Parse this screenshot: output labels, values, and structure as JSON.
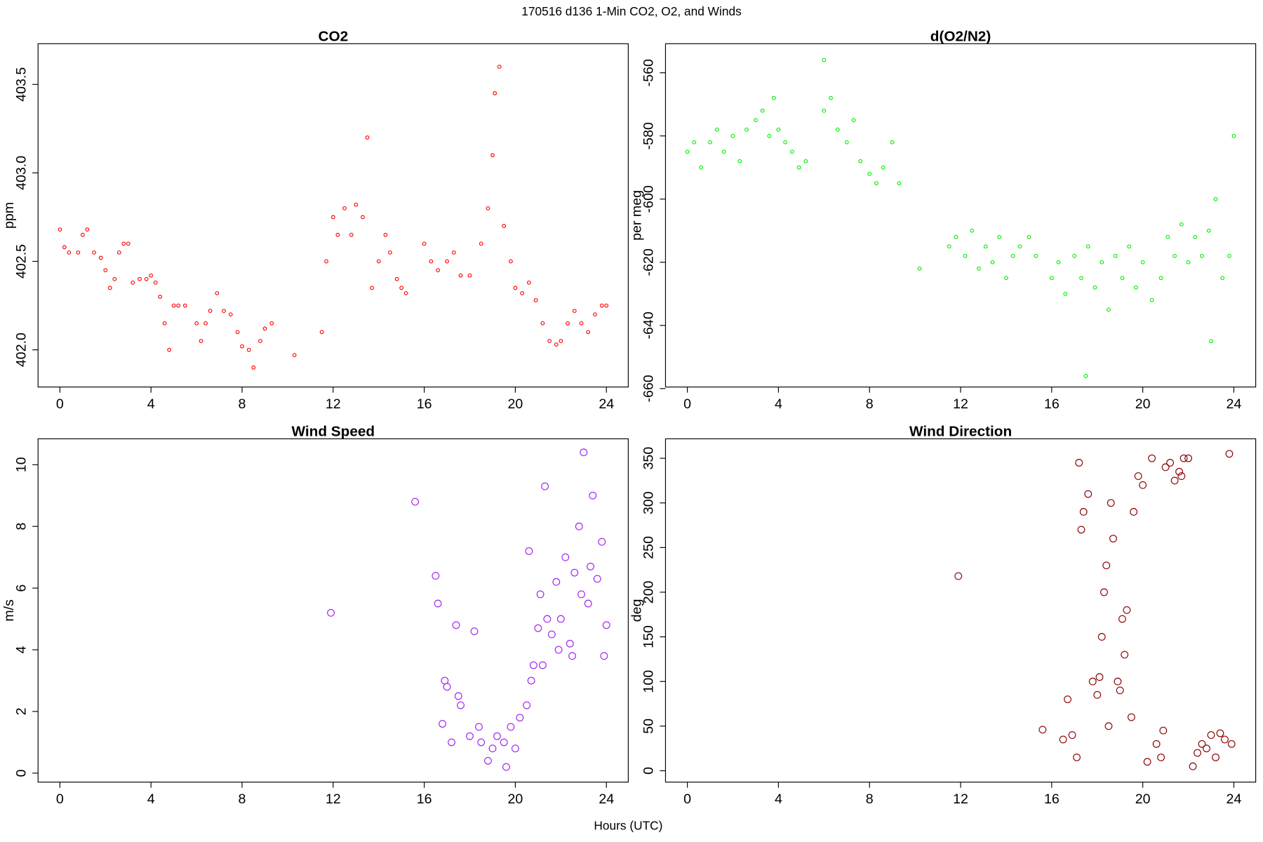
{
  "title": "170516   d136   1-Min CO2, O2, and Winds",
  "xlabel": "Hours (UTC)",
  "chart_data": [
    {
      "type": "scatter",
      "title": "CO2",
      "ylabel": "ppm",
      "color": "#ff0000",
      "x": [
        0.0,
        0.2,
        0.4,
        0.8,
        1.0,
        1.2,
        1.5,
        1.8,
        2.0,
        2.2,
        2.4,
        2.6,
        2.8,
        3.0,
        3.2,
        3.5,
        3.8,
        4.0,
        4.2,
        4.4,
        4.6,
        4.8,
        5.0,
        5.2,
        5.5,
        6.0,
        6.2,
        6.4,
        6.6,
        6.9,
        7.2,
        7.5,
        7.8,
        8.0,
        8.3,
        8.5,
        8.8,
        9.0,
        9.3,
        10.3,
        11.5,
        11.7,
        12.0,
        12.2,
        12.5,
        12.8,
        13.0,
        13.3,
        13.5,
        13.7,
        14.0,
        14.3,
        14.5,
        14.8,
        15.0,
        15.2,
        16.0,
        16.3,
        16.6,
        17.0,
        17.3,
        17.6,
        18.0,
        18.5,
        18.8,
        19.0,
        19.1,
        19.3,
        19.5,
        19.8,
        20.0,
        20.3,
        20.6,
        20.9,
        21.2,
        21.5,
        21.8,
        22.0,
        22.3,
        22.6,
        22.9,
        23.2,
        23.5,
        23.8,
        24.0
      ],
      "values": [
        402.68,
        402.58,
        402.55,
        402.55,
        402.65,
        402.68,
        402.55,
        402.52,
        402.45,
        402.35,
        402.4,
        402.55,
        402.6,
        402.6,
        402.38,
        402.4,
        402.4,
        402.42,
        402.38,
        402.3,
        402.15,
        402.0,
        402.25,
        402.25,
        402.25,
        402.15,
        402.05,
        402.15,
        402.22,
        402.32,
        402.22,
        402.2,
        402.1,
        402.02,
        402.0,
        401.9,
        402.05,
        402.12,
        402.15,
        401.97,
        402.1,
        402.5,
        402.75,
        402.65,
        402.8,
        402.65,
        402.82,
        402.75,
        403.2,
        402.35,
        402.5,
        402.65,
        402.55,
        402.4,
        402.35,
        402.32,
        402.6,
        402.5,
        402.45,
        402.5,
        402.55,
        402.42,
        402.42,
        402.6,
        402.8,
        403.1,
        403.45,
        403.6,
        402.7,
        402.5,
        402.35,
        402.32,
        402.38,
        402.28,
        402.15,
        402.05,
        402.03,
        402.05,
        402.15,
        402.22,
        402.15,
        402.1,
        402.2,
        402.25,
        402.25
      ],
      "xlim": [
        -0.96,
        24.96
      ],
      "ylim": [
        401.79,
        403.73
      ],
      "xticks": [
        0,
        4,
        8,
        12,
        16,
        20,
        24
      ],
      "yticks": [
        {
          "value": 402,
          "label": "402.0"
        },
        402.5,
        {
          "value": 403,
          "label": "403.0"
        },
        403.5
      ]
    },
    {
      "type": "scatter",
      "title": "d(O2/N2)",
      "ylabel": "per meg",
      "color": "#00ee00",
      "x": [
        0,
        0.3,
        0.6,
        1.0,
        1.3,
        1.6,
        2.0,
        2.3,
        2.6,
        3.0,
        3.3,
        3.6,
        3.8,
        4.0,
        4.3,
        4.6,
        4.9,
        5.2,
        6.0,
        6.3,
        6.6,
        7.0,
        7.3,
        7.6,
        8.0,
        8.3,
        8.6,
        9.0,
        9.3,
        10.2,
        11.5,
        11.8,
        12.2,
        12.5,
        12.8,
        13.1,
        13.4,
        13.7,
        14.0,
        14.3,
        14.6,
        15.0,
        15.3,
        16.0,
        16.3,
        16.6,
        17.0,
        17.3,
        17.6,
        17.9,
        18.2,
        18.5,
        18.8,
        19.1,
        19.4,
        19.7,
        20.0,
        20.4,
        20.8,
        21.1,
        21.4,
        21.7,
        22.0,
        22.3,
        22.6,
        22.9,
        23.2,
        23.5,
        23.8,
        24.0,
        17.5,
        23.0,
        6.0
      ],
      "values": [
        -585,
        -582,
        -590,
        -582,
        -578,
        -585,
        -580,
        -588,
        -578,
        -575,
        -572,
        -580,
        -568,
        -578,
        -582,
        -585,
        -590,
        -588,
        -572,
        -568,
        -578,
        -582,
        -575,
        -588,
        -592,
        -595,
        -590,
        -582,
        -595,
        -622,
        -615,
        -612,
        -618,
        -610,
        -622,
        -615,
        -620,
        -612,
        -625,
        -618,
        -615,
        -612,
        -618,
        -625,
        -620,
        -630,
        -618,
        -625,
        -615,
        -628,
        -620,
        -635,
        -618,
        -625,
        -615,
        -628,
        -620,
        -632,
        -625,
        -612,
        -618,
        -608,
        -620,
        -612,
        -618,
        -610,
        -600,
        -625,
        -618,
        -580,
        -656,
        -645,
        -556
      ],
      "xlim": [
        -0.96,
        24.96
      ],
      "ylim": [
        -659.5,
        -550.8
      ],
      "xticks": [
        0,
        4,
        8,
        12,
        16,
        20,
        24
      ],
      "yticks": [
        -660,
        -640,
        -620,
        -600,
        -580,
        -560
      ]
    },
    {
      "type": "scatter",
      "title": "Wind Speed",
      "ylabel": "m/s",
      "color": "#a020f0",
      "x": [
        11.9,
        15.6,
        16.5,
        16.6,
        16.8,
        17.0,
        17.2,
        17.4,
        17.6,
        18.0,
        18.2,
        18.5,
        18.8,
        19.0,
        19.2,
        19.5,
        19.8,
        20.0,
        20.2,
        20.5,
        20.7,
        21.0,
        21.2,
        21.4,
        21.6,
        21.8,
        22.0,
        22.2,
        22.4,
        22.6,
        22.8,
        23.0,
        23.2,
        23.4,
        23.6,
        23.8,
        24.0,
        21.3,
        20.6,
        23.9,
        22.9,
        19.6,
        18.4,
        17.5,
        16.9,
        20.8,
        21.9,
        22.5,
        23.3,
        21.1
      ],
      "values": [
        5.2,
        8.8,
        6.4,
        5.5,
        1.6,
        2.8,
        1.0,
        4.8,
        2.2,
        1.2,
        4.6,
        1.0,
        0.4,
        0.8,
        1.2,
        1.0,
        1.5,
        0.8,
        1.8,
        2.2,
        3.0,
        4.7,
        3.5,
        5.0,
        4.5,
        6.2,
        5.0,
        7.0,
        4.2,
        6.5,
        8.0,
        10.4,
        5.5,
        9.0,
        6.3,
        7.5,
        4.8,
        9.3,
        7.2,
        3.8,
        5.8,
        0.2,
        1.5,
        2.5,
        3.0,
        3.5,
        4.0,
        3.8,
        6.7,
        5.8
      ],
      "xlim": [
        -0.96,
        24.96
      ],
      "ylim": [
        -0.29,
        10.84
      ],
      "xticks": [
        0,
        4,
        8,
        12,
        16,
        20,
        24
      ],
      "yticks": [
        0,
        2,
        4,
        6,
        8,
        10
      ]
    },
    {
      "type": "scatter",
      "title": "Wind Direction",
      "ylabel": "deg",
      "color": "#8b0000",
      "x": [
        11.9,
        15.6,
        16.5,
        16.7,
        16.9,
        17.1,
        17.2,
        17.3,
        17.4,
        17.6,
        17.8,
        18.0,
        18.2,
        18.3,
        18.4,
        18.5,
        18.6,
        18.7,
        18.9,
        19.0,
        19.2,
        19.3,
        19.5,
        19.6,
        19.8,
        20.0,
        20.2,
        20.4,
        20.6,
        20.8,
        21.0,
        21.2,
        21.4,
        21.6,
        21.8,
        22.0,
        22.2,
        22.4,
        22.6,
        22.8,
        23.0,
        23.2,
        23.4,
        23.6,
        23.8,
        23.9,
        19.1,
        18.1,
        20.9,
        21.7
      ],
      "values": [
        218,
        46,
        35,
        80,
        40,
        15,
        345,
        270,
        290,
        310,
        100,
        85,
        150,
        200,
        230,
        50,
        300,
        260,
        100,
        90,
        130,
        180,
        60,
        290,
        330,
        320,
        10,
        350,
        30,
        15,
        340,
        345,
        325,
        335,
        350,
        350,
        5,
        20,
        30,
        25,
        40,
        15,
        42,
        35,
        355,
        30,
        170,
        105,
        45,
        330
      ],
      "xlim": [
        -0.96,
        24.96
      ],
      "ylim": [
        -12.7,
        371.8
      ],
      "xticks": [
        0,
        4,
        8,
        12,
        16,
        20,
        24
      ],
      "yticks": [
        0,
        50,
        100,
        150,
        200,
        250,
        300,
        350
      ]
    }
  ]
}
